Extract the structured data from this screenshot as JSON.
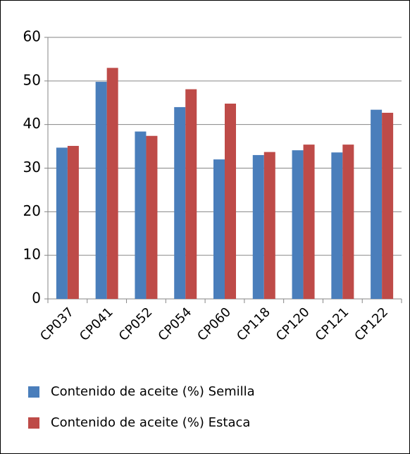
{
  "chart_data": {
    "type": "bar",
    "categories": [
      "CP037",
      "CP041",
      "CP052",
      "CP054",
      "CP060",
      "CP118",
      "CP120",
      "CP121",
      "CP122"
    ],
    "series": [
      {
        "name": "Contenido de aceite (%) Semilla",
        "color": "#4a7ebb",
        "values": [
          34.7,
          49.8,
          38.4,
          44,
          32,
          33,
          34.1,
          33.6,
          43.4
        ]
      },
      {
        "name": "Contenido de aceite (%) Estaca",
        "color": "#be4b48",
        "values": [
          35.1,
          53,
          37.4,
          48.1,
          44.8,
          33.7,
          35.4,
          35.4,
          42.7
        ]
      }
    ],
    "ylim": [
      0,
      60
    ],
    "yticks": [
      0,
      10,
      20,
      30,
      40,
      50,
      60
    ],
    "grid": true
  }
}
